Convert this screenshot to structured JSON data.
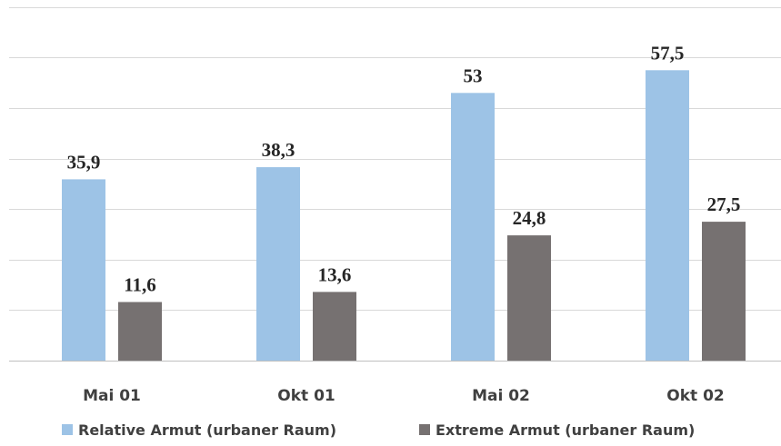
{
  "chart_data": {
    "type": "bar",
    "title": "",
    "xlabel": "",
    "ylabel": "",
    "categories": [
      "Mai 01",
      "Okt 01",
      "Mai 02",
      "Okt 02"
    ],
    "series": [
      {
        "name": "Relative Armut (urbaner Raum)",
        "values": [
          35.9,
          38.3,
          53,
          57.5
        ],
        "labels": [
          "35,9",
          "38,3",
          "53",
          "57,5"
        ],
        "color": "#9dc3e6"
      },
      {
        "name": "Extreme Armut (urbaner Raum)",
        "values": [
          11.6,
          13.6,
          24.8,
          27.5
        ],
        "labels": [
          "11,6",
          "13,6",
          "24,8",
          "27,5"
        ],
        "color": "#767171"
      }
    ],
    "ylim": [
      0,
      70
    ],
    "grid": true,
    "gridline_step": 10,
    "legend": "bottom-center"
  }
}
